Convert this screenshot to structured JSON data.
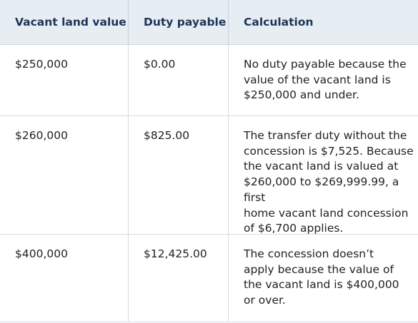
{
  "table": {
    "headers": [
      "Vacant land value",
      "Duty payable",
      "Calculation"
    ],
    "rows": [
      {
        "value": "$250,000",
        "duty": "$0.00",
        "calc": [
          "No duty payable because the",
          "value of the vacant land is",
          "$250,000 and under."
        ]
      },
      {
        "value": "$260,000",
        "duty": "$825.00",
        "calc": [
          "The transfer duty without the",
          "concession is $7,525. Because",
          "the vacant land is valued at",
          "$260,000 to $269,999.99, a first",
          "home vacant land concession",
          "of $6,700 applies."
        ]
      },
      {
        "value": "$400,000",
        "duty": "$12,425.00",
        "calc": [
          "The concession doesn’t",
          "apply because the value of",
          "the vacant land is $400,000",
          "or over."
        ]
      }
    ]
  },
  "colors": {
    "header_bg": "#e6edf3",
    "header_text": "#1d3557",
    "grid_line": "#d4dbe1",
    "body_text": "#222222"
  }
}
